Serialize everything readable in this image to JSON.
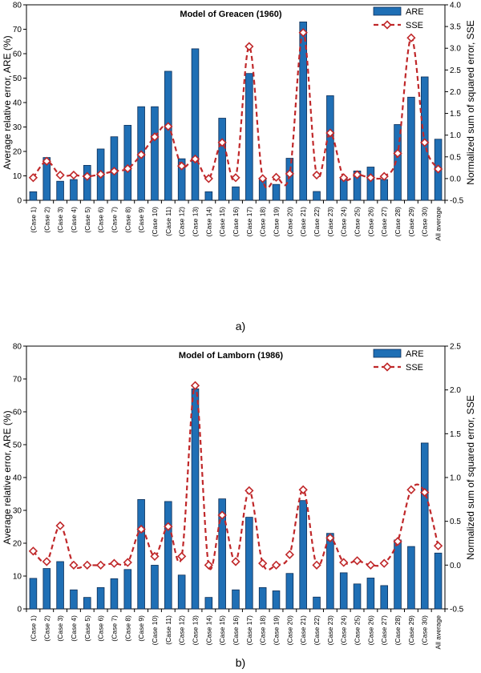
{
  "chart_data": [
    {
      "type": "bar",
      "panel_label": "a)",
      "title": "Model of Greacen (1960)",
      "categories": [
        "(Case 1)",
        "(Case 2)",
        "(Case 3)",
        "(Case 4)",
        "(Case 5)",
        "(Case 6)",
        "(Case 7)",
        "(Case 8)",
        "(Case 9)",
        "(Case 10)",
        "(Case 11)",
        "(Case 12)",
        "(Case 13)",
        "(Case 14)",
        "(Case 15)",
        "(Case 16)",
        "(Case 17)",
        "(Case 18)",
        "(Case 19)",
        "(Case 20)",
        "(Case 21)",
        "(Case 22)",
        "(Case 23)",
        "(Case 24)",
        "(Case 25)",
        "(Case 26)",
        "(Case 27)",
        "(Case 28)",
        "(Case 29)",
        "(Case 30)",
        "All average"
      ],
      "ylabel": "Average relative error, ARE (%)",
      "y2label": "Normalized sum of squared error, SSE",
      "ylim": [
        0,
        80
      ],
      "yticks": [
        0,
        10,
        20,
        30,
        40,
        50,
        60,
        70,
        80
      ],
      "y2lim": [
        -0.5,
        4.0
      ],
      "y2ticks": [
        -0.5,
        0.0,
        0.5,
        1.0,
        1.5,
        2.0,
        2.5,
        3.0,
        3.5,
        4.0
      ],
      "legend": "top-right",
      "colors": {
        "bar": "#1f6fb5",
        "bar_edge": "#0d2e57",
        "line": "#c0282a",
        "marker_fill": "#ffffff"
      },
      "series": [
        {
          "name": "ARE",
          "kind": "bar",
          "axis": "left",
          "values": [
            3.5,
            17.5,
            7.8,
            8.5,
            14.3,
            21,
            26,
            30.7,
            38.3,
            38.3,
            52.8,
            17,
            62,
            3.5,
            33.6,
            5.5,
            51.9,
            8.3,
            6.5,
            17.2,
            73,
            3.6,
            42.8,
            9.3,
            12,
            13.6,
            8.5,
            31,
            42.2,
            50.5,
            25
          ]
        },
        {
          "name": "SSE",
          "kind": "line",
          "axis": "right",
          "values": [
            0.02,
            0.4,
            0.08,
            0.08,
            0.05,
            0.1,
            0.17,
            0.23,
            0.55,
            0.96,
            1.2,
            0.29,
            0.45,
            0.0,
            0.83,
            0.02,
            3.04,
            0.0,
            0.03,
            0.11,
            3.36,
            0.08,
            1.05,
            0.02,
            0.09,
            0.02,
            0.05,
            0.58,
            3.24,
            0.83,
            0.22
          ]
        }
      ]
    },
    {
      "type": "bar",
      "panel_label": "b)",
      "title": "Model of Lamborn (1986)",
      "categories": [
        "(Case 1)",
        "(Case 2)",
        "(Case 3)",
        "(Case 4)",
        "(Case 5)",
        "(Case 6)",
        "(Case 7)",
        "(Case 8)",
        "(Case 9)",
        "(Case 10)",
        "(Case 11)",
        "(Case 12)",
        "(Case 13)",
        "(Case 14)",
        "(Case 15)",
        "(Case 16)",
        "(Case 17)",
        "(Case 18)",
        "(Case 19)",
        "(Case 20)",
        "(Case 21)",
        "(Case 22)",
        "(Case 23)",
        "(Case 24)",
        "(Case 25)",
        "(Case 26)",
        "(Case 27)",
        "(Case 28)",
        "(Case 29)",
        "(Case 30)",
        "All average"
      ],
      "ylabel": "Average relative error, ARE (%)",
      "y2label": "Normalized sum of squared error, SSE",
      "ylim": [
        0,
        80
      ],
      "yticks": [
        0,
        10,
        20,
        30,
        40,
        50,
        60,
        70,
        80
      ],
      "y2lim": [
        -0.5,
        2.5
      ],
      "y2ticks": [
        -0.5,
        0.0,
        0.5,
        1.0,
        1.5,
        2.0,
        2.5
      ],
      "legend": "top-right",
      "colors": {
        "bar": "#1f6fb5",
        "bar_edge": "#0d2e57",
        "line": "#c0282a",
        "marker_fill": "#ffffff"
      },
      "series": [
        {
          "name": "ARE",
          "kind": "bar",
          "axis": "left",
          "values": [
            9.3,
            12.3,
            14.4,
            5.8,
            3.5,
            6.5,
            9.2,
            12,
            33.3,
            13.3,
            32.7,
            10.3,
            67,
            3.5,
            33.5,
            5.8,
            27.9,
            6.5,
            5.5,
            10.8,
            33,
            3.6,
            23,
            11,
            7.6,
            9.4,
            7.1,
            21,
            19,
            50.5,
            17
          ]
        },
        {
          "name": "SSE",
          "kind": "line",
          "axis": "right",
          "values": [
            0.16,
            0.04,
            0.45,
            0.0,
            0.0,
            0.0,
            0.02,
            0.03,
            0.41,
            0.1,
            0.44,
            0.1,
            2.05,
            0.0,
            0.57,
            0.04,
            0.85,
            0.02,
            0.0,
            0.12,
            0.86,
            0.0,
            0.31,
            0.03,
            0.05,
            0.0,
            0.02,
            0.27,
            0.86,
            0.83,
            0.22
          ]
        }
      ]
    }
  ]
}
